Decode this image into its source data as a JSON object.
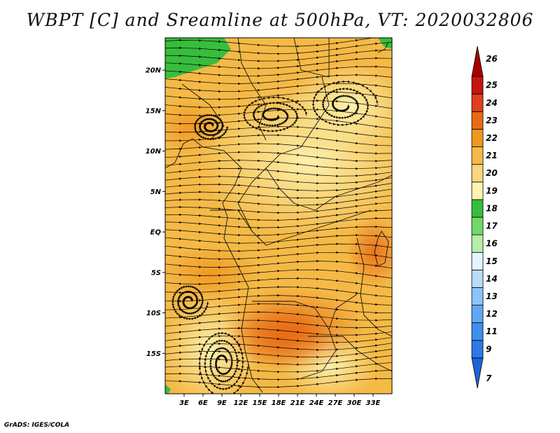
{
  "title": "WBPT [C] and Sreamline at 500hPa, VT: 2020032806",
  "footer": "GrADS: IGES/COLA",
  "map": {
    "lat_range": [
      -20,
      24
    ],
    "lon_range": [
      0,
      36
    ],
    "lat_ticks": [
      {
        "value": 20,
        "label": "20N"
      },
      {
        "value": 15,
        "label": "15N"
      },
      {
        "value": 10,
        "label": "10N"
      },
      {
        "value": 5,
        "label": "5N"
      },
      {
        "value": 0,
        "label": "EQ"
      },
      {
        "value": -5,
        "label": "5S"
      },
      {
        "value": -10,
        "label": "10S"
      },
      {
        "value": -15,
        "label": "15S"
      }
    ],
    "lon_ticks": [
      {
        "value": 3,
        "label": "3E"
      },
      {
        "value": 6,
        "label": "6E"
      },
      {
        "value": 9,
        "label": "9E"
      },
      {
        "value": 12,
        "label": "12E"
      },
      {
        "value": 15,
        "label": "15E"
      },
      {
        "value": 18,
        "label": "18E"
      },
      {
        "value": 21,
        "label": "21E"
      },
      {
        "value": 24,
        "label": "24E"
      },
      {
        "value": 27,
        "label": "27E"
      },
      {
        "value": 30,
        "label": "30E"
      },
      {
        "value": 33,
        "label": "33E"
      }
    ],
    "shading_levels": [
      {
        "label": "7",
        "color": "#1e64d8"
      },
      {
        "label": "9",
        "color": "#2c7ae6"
      },
      {
        "label": "11",
        "color": "#3f8ff0"
      },
      {
        "label": "12",
        "color": "#62a7f6"
      },
      {
        "label": "13",
        "color": "#8ec3fa"
      },
      {
        "label": "14",
        "color": "#b8dcfc"
      },
      {
        "label": "15",
        "color": "#e4f5fe"
      },
      {
        "label": "16",
        "color": "#b6efa8"
      },
      {
        "label": "17",
        "color": "#72d867"
      },
      {
        "label": "18",
        "color": "#38bd3c"
      },
      {
        "label": "19",
        "color": "#fef3b0"
      },
      {
        "label": "20",
        "color": "#fbd77c"
      },
      {
        "label": "21",
        "color": "#f5b946"
      },
      {
        "label": "22",
        "color": "#f0961e"
      },
      {
        "label": "23",
        "color": "#e86a14"
      },
      {
        "label": "24",
        "color": "#e0401a"
      },
      {
        "label": "25",
        "color": "#c81410"
      },
      {
        "label": "26",
        "color": "#a50000"
      }
    ]
  }
}
